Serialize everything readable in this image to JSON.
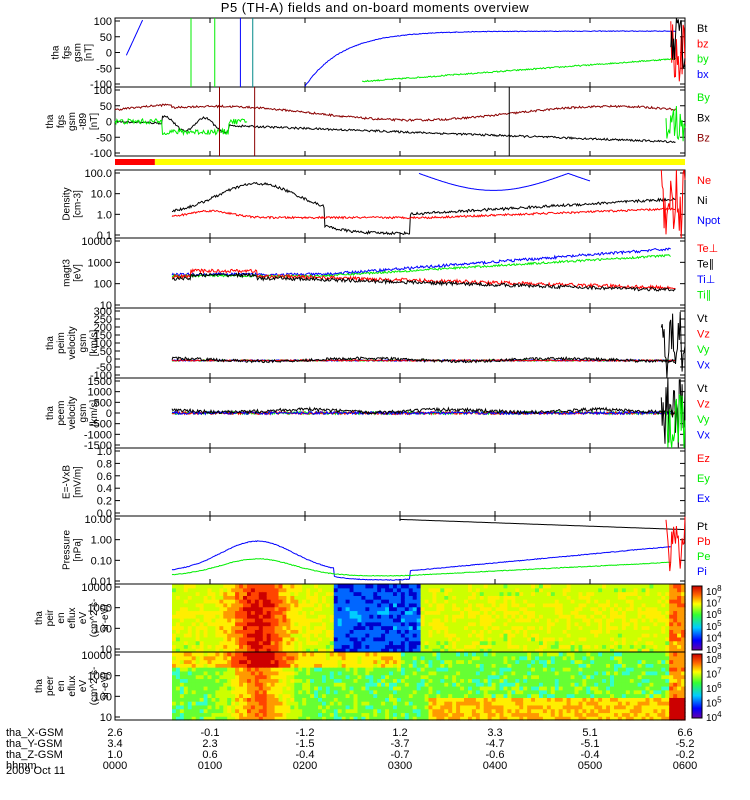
{
  "title": "P5 (TH-A) fields and on-board moments overview",
  "date_label": "2009 Oct 11",
  "colors": {
    "black": "#000000",
    "red": "#ff0000",
    "green": "#00ee00",
    "blue": "#0000ff",
    "darkred": "#8b0000",
    "yellow": "#ffff00"
  },
  "chart_data": [
    {
      "type": "line",
      "panel": "fgs_gsm",
      "ylabel_lines": [
        "tha",
        "fgs",
        "gsm",
        "[nT]"
      ],
      "ylim": [
        -100,
        100
      ],
      "yticks": [
        "100",
        "50",
        "0",
        "-50",
        "-100"
      ],
      "legend": [
        {
          "name": "Bt",
          "color": "#000000"
        },
        {
          "name": "bz",
          "color": "#ff0000"
        },
        {
          "name": "by",
          "color": "#00ee00"
        },
        {
          "name": "bx",
          "color": "#0000ff"
        }
      ]
    },
    {
      "type": "line",
      "panel": "fgs_gsm_t89",
      "ylabel_lines": [
        "tha",
        "fgs",
        "gsm",
        "-t89",
        "[nT]"
      ],
      "ylim": [
        -120,
        120
      ],
      "yticks": [
        "100",
        "50",
        "0",
        "-50",
        "-100"
      ],
      "legend": [
        {
          "name": "By",
          "color": "#00ee00"
        },
        {
          "name": "Bx",
          "color": "#000000"
        },
        {
          "name": "Bz",
          "color": "#8b0000"
        }
      ]
    },
    {
      "type": "line",
      "panel": "density",
      "ylabel_lines": [
        "Density",
        "[cm-3]"
      ],
      "ylim": [
        0.05,
        200
      ],
      "scale": "log",
      "yticks": [
        "100.0",
        "10.0",
        "1.0",
        "0.1"
      ],
      "legend": [
        {
          "name": "Ne",
          "color": "#ff0000"
        },
        {
          "name": "Ni",
          "color": "#000000"
        },
        {
          "name": "Npot",
          "color": "#0000ff"
        }
      ]
    },
    {
      "type": "line",
      "panel": "mag_temperature",
      "ylabel_lines": [
        "magt3",
        "[eV]"
      ],
      "ylim": [
        8,
        12000
      ],
      "scale": "log",
      "yticks": [
        "10000",
        "1000",
        "100",
        "10"
      ],
      "legend": [
        {
          "name": "Te⊥",
          "color": "#ff0000"
        },
        {
          "name": "Te∥",
          "color": "#000000"
        },
        {
          "name": "Ti⊥",
          "color": "#0000ff"
        },
        {
          "name": "Ti∥",
          "color": "#00ee00"
        }
      ]
    },
    {
      "type": "line",
      "panel": "peim_velocity",
      "ylabel_lines": [
        "tha",
        "peim",
        "velocity",
        "gsm",
        "[km/s]"
      ],
      "ylim": [
        -100,
        300
      ],
      "yticks": [
        "300",
        "250",
        "200",
        "150",
        "100",
        "50",
        "0",
        "-50",
        "-100"
      ],
      "legend": [
        {
          "name": "Vt",
          "color": "#000000"
        },
        {
          "name": "Vz",
          "color": "#ff0000"
        },
        {
          "name": "Vy",
          "color": "#00ee00"
        },
        {
          "name": "Vx",
          "color": "#0000ff"
        }
      ]
    },
    {
      "type": "line",
      "panel": "peem_velocity",
      "ylabel_lines": [
        "tha",
        "peem",
        "velocity",
        "gsm",
        "[km/s]"
      ],
      "ylim": [
        -1500,
        1500
      ],
      "yticks": [
        "1500",
        "1000",
        "500",
        "0",
        "-500",
        "-1000",
        "-1500"
      ],
      "legend": [
        {
          "name": "Vt",
          "color": "#000000"
        },
        {
          "name": "Vz",
          "color": "#ff0000"
        },
        {
          "name": "Vy",
          "color": "#00ee00"
        },
        {
          "name": "Vx",
          "color": "#0000ff"
        }
      ]
    },
    {
      "type": "line",
      "panel": "efield",
      "ylabel_lines": [
        "E=-VxB",
        "[mV/m]"
      ],
      "ylim": [
        0,
        1
      ],
      "yticks": [
        "1.0",
        "0.8",
        "0.6",
        "0.4",
        "0.2",
        "0.0"
      ],
      "legend": [
        {
          "name": "Ez",
          "color": "#ff0000"
        },
        {
          "name": "Ey",
          "color": "#00ee00"
        },
        {
          "name": "Ex",
          "color": "#0000ff"
        }
      ]
    },
    {
      "type": "line",
      "panel": "pressure",
      "ylabel_lines": [
        "Pressure",
        "[nPa]"
      ],
      "ylim": [
        0.003,
        20
      ],
      "scale": "log",
      "yticks": [
        "10.00",
        "1.00",
        "0.10",
        "0.01"
      ],
      "legend": [
        {
          "name": "Pt",
          "color": "#000000"
        },
        {
          "name": "Pb",
          "color": "#ff0000"
        },
        {
          "name": "Pe",
          "color": "#00ee00"
        },
        {
          "name": "Pi",
          "color": "#0000ff"
        }
      ]
    },
    {
      "type": "heatmap",
      "panel": "peir_eflux",
      "ylabel_lines": [
        "tha",
        "peir",
        "en",
        "eflux",
        "eV",
        "(cm^2-s-",
        "sr-eV)"
      ],
      "ylim": [
        5,
        25000
      ],
      "scale": "log",
      "yticks": [
        "10000",
        "1000",
        "100",
        "10"
      ],
      "colorbar_ticks": [
        "10^8",
        "10^7",
        "10^6",
        "10^5",
        "10^4",
        "10^3"
      ]
    },
    {
      "type": "heatmap",
      "panel": "peer_eflux",
      "ylabel_lines": [
        "tha",
        "peer",
        "en",
        "eflux",
        "eV",
        "(cm^2-s-",
        "sr-eV)"
      ],
      "ylim": [
        5,
        25000
      ],
      "scale": "log",
      "yticks": [
        "10000",
        "1000",
        "100",
        "10"
      ],
      "colorbar_ticks": [
        "10^8",
        "10^7",
        "10^6",
        "10^5",
        "10^4"
      ]
    }
  ],
  "ephemeris": {
    "rows": [
      {
        "label": "tha_X-GSM",
        "values": [
          "2.6",
          "-0.1",
          "-1.2",
          "1.2",
          "3.3",
          "5.1",
          "6.6"
        ]
      },
      {
        "label": "tha_Y-GSM",
        "values": [
          "3.4",
          "2.3",
          "-1.5",
          "-3.7",
          "-4.7",
          "-5.1",
          "-5.2"
        ]
      },
      {
        "label": "tha_Z-GSM",
        "values": [
          "1.0",
          "0.6",
          "-0.4",
          "-0.7",
          "-0.6",
          "-0.4",
          "-0.2"
        ]
      },
      {
        "label": "hhmm",
        "values": [
          "0000",
          "0100",
          "0200",
          "0300",
          "0400",
          "0500",
          "0600"
        ]
      }
    ]
  }
}
